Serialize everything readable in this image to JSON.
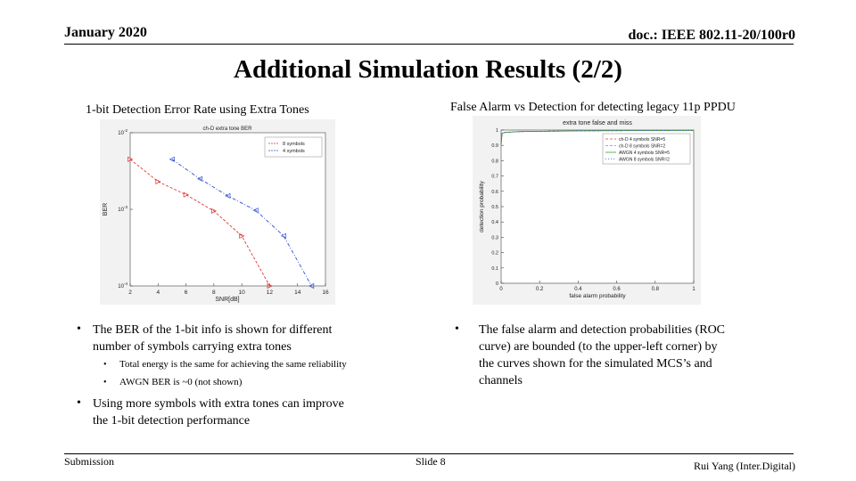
{
  "header": {
    "date": "January 2020",
    "doc": "doc.: IEEE 802.11-20/100r0"
  },
  "title": "Additional Simulation Results (2/2)",
  "left_caption": "1-bit Detection Error Rate using Extra Tones",
  "right_caption": "False Alarm vs Detection for detecting legacy 11p PPDU",
  "left_bullets": [
    {
      "text_line1": "The BER of the 1-bit info is shown for different",
      "text_line2": "number of  symbols carrying extra tones"
    },
    {
      "text_line1": "Using more symbols with extra tones can improve",
      "text_line2": "the 1-bit detection performance"
    }
  ],
  "left_sub_bullets": [
    "Total energy is the same for achieving the same reliability",
    "AWGN BER is ~0 (not shown)"
  ],
  "right_bullet": {
    "lines": [
      "The false alarm and detection probabilities (ROC",
      "curve) are bounded (to the upper-left corner) by",
      "the curves shown for the simulated MCS’s and",
      "channels"
    ]
  },
  "footer": {
    "left": "Submission",
    "center": "Slide 8",
    "right": "Rui Yang (Inter.Digital)"
  },
  "chart_data": [
    {
      "type": "line",
      "title": "ch-D extra tone BER",
      "xlabel": "SNR[dB]",
      "ylabel": "BER",
      "y_scale": "log",
      "xlim": [
        2,
        16
      ],
      "ylim": [
        0.0001,
        0.01
      ],
      "xticks": [
        "2",
        "4",
        "6",
        "8",
        "10",
        "12",
        "14",
        "16"
      ],
      "yticks": [
        "10^-2",
        "10^-3",
        "10^-4"
      ],
      "legend_position": "top-right",
      "series": [
        {
          "name": "8 symbols",
          "color": "#e03030",
          "marker": "triangle-right",
          "x": [
            2,
            4,
            6,
            8,
            10,
            12
          ],
          "y": [
            0.0045,
            0.0023,
            0.00155,
            0.00095,
            0.00045,
            0.0001
          ]
        },
        {
          "name": "4 symbols",
          "color": "#3050d0",
          "marker": "triangle-left",
          "x": [
            5,
            7,
            9,
            11,
            13,
            15
          ],
          "y": [
            0.0045,
            0.0025,
            0.0015,
            0.00097,
            0.00045,
            0.0001
          ]
        }
      ]
    },
    {
      "type": "line",
      "title": "extra tone false and miss",
      "xlabel": "false alarm probability",
      "ylabel": "detection probability",
      "xlim": [
        0,
        1
      ],
      "ylim": [
        0,
        1
      ],
      "xticks": [
        "0",
        "0.2",
        "0.4",
        "0.6",
        "0.8",
        "1"
      ],
      "yticks": [
        "0",
        "0.1",
        "0.2",
        "0.3",
        "0.4",
        "0.5",
        "0.6",
        "0.7",
        "0.8",
        "0.9",
        "1"
      ],
      "legend_position": "top-right",
      "series": [
        {
          "name": "ch-D 4 symbols SNR=5",
          "color": "#d04040",
          "dash": "3,2"
        },
        {
          "name": "ch-D 8 symbols SNR=2",
          "color": "#d060d0",
          "dash": "3,2"
        },
        {
          "name": "AWGN 4 symbols SNR=5",
          "color": "#30a030",
          "dash": ""
        },
        {
          "name": "AWGN 8 symbols SNR=2",
          "color": "#3060c0",
          "dash": "1,2"
        }
      ]
    }
  ]
}
